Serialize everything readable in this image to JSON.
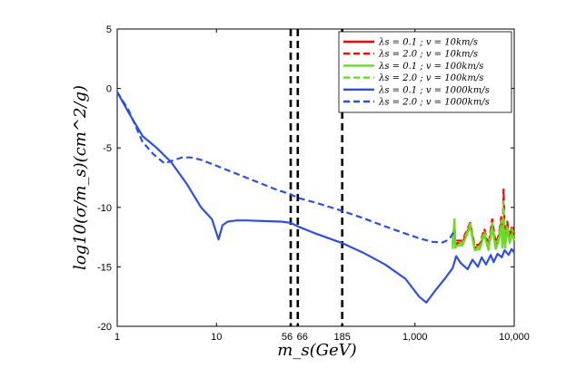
{
  "chart_data": {
    "type": "line",
    "xscale": "log",
    "xlim": [
      1,
      10000
    ],
    "ylim": [
      -20,
      5
    ],
    "xlabel": "m_s(GeV)",
    "ylabel": "log10(σ/m_s)(cm^2/g)",
    "x_ticks": [
      {
        "value": 1,
        "label": "1"
      },
      {
        "value": 10,
        "label": "10"
      },
      {
        "value": 56,
        "label": "56"
      },
      {
        "value": 66,
        "label": "66"
      },
      {
        "value": 185,
        "label": "185"
      },
      {
        "value": 1000,
        "label": "1,000"
      },
      {
        "value": 10000,
        "label": "10,000"
      }
    ],
    "y_ticks": [
      {
        "value": 5,
        "label": "5"
      },
      {
        "value": 0,
        "label": "0"
      },
      {
        "value": -5,
        "label": "-5"
      },
      {
        "value": -10,
        "label": "-10"
      },
      {
        "value": -15,
        "label": "-15"
      },
      {
        "value": -20,
        "label": "-20"
      }
    ],
    "vlines": [
      56,
      66,
      185
    ],
    "legend_position": "top-right",
    "series": [
      {
        "name": "λs = 0.1 ; v = 10km/s",
        "color": "#ff0000",
        "dash": "solid",
        "x": [
          2400,
          2500,
          2550,
          2650,
          3000,
          3300,
          3600,
          4000,
          4500,
          5000,
          5500,
          6000,
          6500,
          7000,
          7400,
          7600,
          7800,
          8100,
          8500,
          9000,
          9500,
          10000
        ],
        "y": [
          -13.0,
          -11.4,
          -13.4,
          -13.0,
          -13.0,
          -12.2,
          -11.5,
          -13.4,
          -13.3,
          -12.1,
          -13.4,
          -11.4,
          -13.3,
          -12.6,
          -11.2,
          -13.2,
          -10.9,
          -13.2,
          -11.5,
          -12.8,
          -11.9,
          -12.6
        ]
      },
      {
        "name": "λs = 2.0 ; v = 10km/s",
        "color": "#ff0000",
        "dash": "dashed",
        "x": [
          2400,
          2500,
          2550,
          2650,
          3000,
          3300,
          3600,
          4000,
          4500,
          5000,
          5500,
          6000,
          6500,
          7000,
          7400,
          7600,
          7800,
          8100,
          8500,
          9000,
          9500,
          10000
        ],
        "y": [
          -13.0,
          -11.2,
          -13.2,
          -12.8,
          -12.8,
          -12.0,
          -11.3,
          -13.2,
          -13.1,
          -11.8,
          -13.2,
          -11.0,
          -13.0,
          -12.3,
          -10.8,
          -13.0,
          -8.5,
          -13.0,
          -11.2,
          -12.5,
          -11.5,
          -12.3
        ]
      },
      {
        "name": "λs = 0.1 ; v = 100km/s",
        "color": "#66dd22",
        "dash": "solid",
        "x": [
          2400,
          2500,
          2550,
          2650,
          3000,
          3300,
          3600,
          4000,
          4500,
          5000,
          5500,
          6000,
          6500,
          7000,
          7400,
          7600,
          7800,
          8100,
          8500,
          9000,
          9500,
          10000
        ],
        "y": [
          -13.5,
          -11.0,
          -13.4,
          -13.2,
          -13.2,
          -12.4,
          -11.6,
          -13.6,
          -13.5,
          -12.3,
          -13.6,
          -11.7,
          -13.5,
          -12.8,
          -11.5,
          -13.4,
          -11.5,
          -13.4,
          -11.8,
          -13.0,
          -12.2,
          -12.8
        ]
      },
      {
        "name": "λs = 2.0 ; v = 100km/s",
        "color": "#66dd22",
        "dash": "dashed",
        "x": [
          2400,
          2500,
          2550,
          2650,
          3000,
          3300,
          3600,
          4000,
          4500,
          5000,
          5500,
          6000,
          6500,
          7000,
          7400,
          7600,
          7800,
          8100,
          8500,
          9000,
          9500,
          10000
        ],
        "y": [
          -13.2,
          -10.9,
          -13.2,
          -13.0,
          -13.0,
          -12.2,
          -11.4,
          -13.4,
          -13.3,
          -12.0,
          -13.4,
          -11.3,
          -13.3,
          -12.5,
          -11.1,
          -13.2,
          -9.5,
          -13.2,
          -11.5,
          -12.7,
          -11.8,
          -12.5
        ]
      },
      {
        "name": "λs = 0.1 ; v = 1000km/s",
        "color": "#2f4fdd",
        "dash": "solid",
        "x": [
          1,
          1.3,
          1.8,
          2.5,
          3.5,
          5,
          7,
          9,
          10.5,
          11.5,
          13,
          16,
          20,
          30,
          45,
          56,
          66,
          100,
          185,
          300,
          500,
          800,
          1100,
          1300,
          1600,
          2000,
          2400,
          2600,
          2900,
          3400,
          3800,
          4300,
          4700,
          5200,
          5800,
          6200,
          6800,
          7500,
          8000,
          8800,
          9400,
          10000
        ],
        "y": [
          -0.3,
          -2.0,
          -4.0,
          -5.0,
          -6.2,
          -8.0,
          -10.0,
          -11.0,
          -12.7,
          -11.5,
          -11.2,
          -11.1,
          -11.1,
          -11.15,
          -11.2,
          -11.3,
          -11.6,
          -12.2,
          -13.0,
          -13.8,
          -14.8,
          -16.0,
          -17.5,
          -18.0,
          -17.0,
          -16.0,
          -15.1,
          -14.1,
          -14.7,
          -15.2,
          -14.4,
          -15.0,
          -14.2,
          -14.8,
          -14.0,
          -14.6,
          -13.9,
          -14.2,
          -13.6,
          -14.0,
          -13.5,
          -13.8
        ]
      },
      {
        "name": "λs = 2.0 ; v = 1000km/s",
        "color": "#2f4fdd",
        "dash": "dashed",
        "x": [
          1,
          1.3,
          1.8,
          2.3,
          3,
          3.8,
          4.5,
          5.5,
          7,
          10,
          20,
          40,
          56,
          66,
          100,
          185,
          300,
          500,
          800,
          1100,
          1500,
          1900,
          2200,
          2400,
          2600
        ],
        "y": [
          -0.3,
          -1.8,
          -4.5,
          -5.5,
          -6.3,
          -6.0,
          -5.8,
          -5.8,
          -6.0,
          -6.5,
          -7.5,
          -8.5,
          -8.9,
          -9.2,
          -9.6,
          -10.3,
          -10.9,
          -11.6,
          -12.2,
          -12.6,
          -12.9,
          -12.95,
          -12.7,
          -12.2,
          -12.0
        ]
      }
    ]
  }
}
